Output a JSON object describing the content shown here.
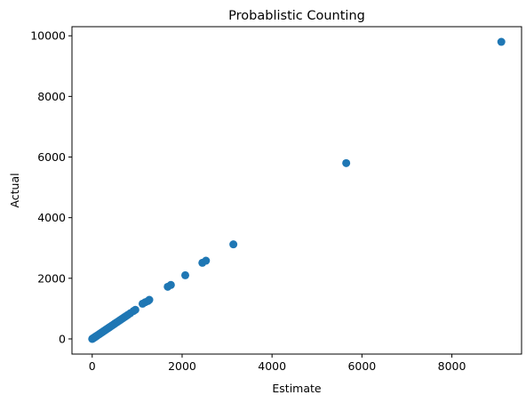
{
  "chart_data": {
    "type": "scatter",
    "title": "Probablistic Counting",
    "xlabel": "Estimate",
    "ylabel": "Actual",
    "xlim": [
      -450,
      9550
    ],
    "ylim": [
      -500,
      10300
    ],
    "xticks": [
      0,
      2000,
      4000,
      6000,
      8000
    ],
    "yticks": [
      0,
      2000,
      4000,
      6000,
      8000,
      10000
    ],
    "xtick_labels": [
      "0",
      "2000",
      "4000",
      "6000",
      "8000"
    ],
    "ytick_labels": [
      "0",
      "2000",
      "4000",
      "6000",
      "8000",
      "10000"
    ],
    "grid": false,
    "marker_color": "#1f77b4",
    "series": [
      {
        "x": [
          0,
          10,
          20,
          30,
          40,
          50,
          60,
          70,
          80,
          90,
          100,
          120,
          140,
          160,
          180,
          200,
          220,
          240,
          260,
          280,
          300,
          320,
          340,
          360,
          380,
          400,
          430,
          460,
          490,
          520,
          550,
          580,
          610,
          640,
          680,
          720,
          760,
          800,
          850,
          920,
          960,
          1120,
          1180,
          1240,
          1270,
          1680,
          1750,
          2070,
          2450,
          2530,
          3140,
          5650,
          9100
        ],
        "y": [
          0,
          10,
          20,
          30,
          40,
          50,
          60,
          70,
          80,
          90,
          100,
          120,
          140,
          160,
          180,
          200,
          220,
          240,
          260,
          280,
          300,
          320,
          340,
          360,
          380,
          400,
          430,
          460,
          490,
          520,
          550,
          580,
          610,
          640,
          680,
          720,
          760,
          800,
          850,
          920,
          960,
          1160,
          1210,
          1250,
          1290,
          1720,
          1780,
          2100,
          2510,
          2580,
          3120,
          5800,
          9800
        ]
      }
    ]
  }
}
